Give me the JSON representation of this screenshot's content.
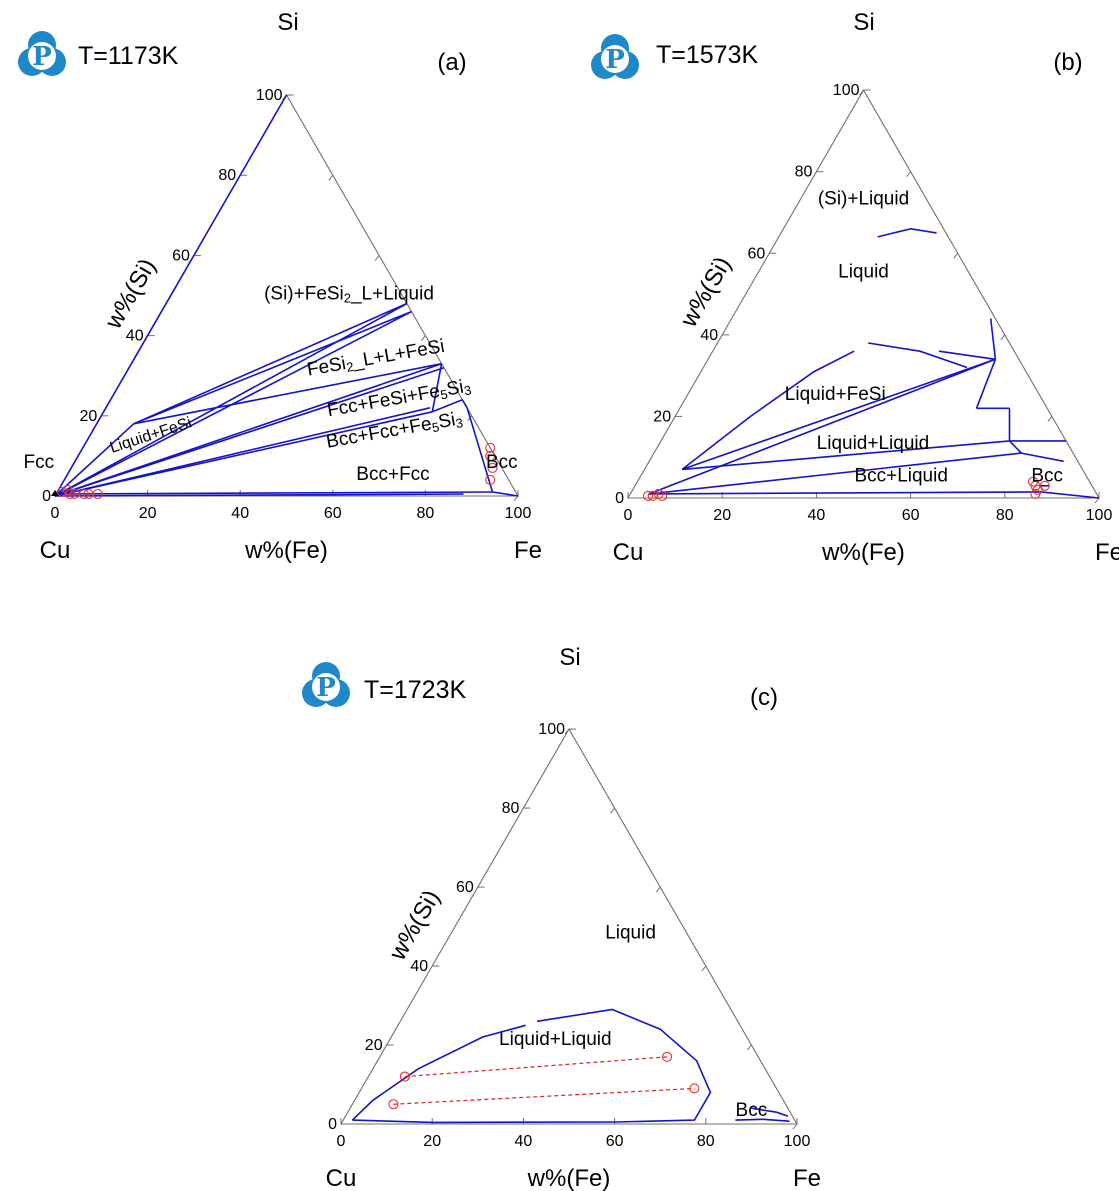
{
  "chart_data": [
    {
      "type": "ternary",
      "panel_label": "(a)",
      "temperature": "T=1173K",
      "apex_labels": {
        "top": "Si",
        "left": "Cu",
        "right": "Fe"
      },
      "axis_labels": {
        "left": "w%(Si)",
        "bottom": "w%(Fe)"
      },
      "ticks": {
        "bottom": [
          "0",
          "20",
          "40",
          "60",
          "80",
          "100"
        ],
        "left": [
          "0",
          "20",
          "40",
          "60",
          "80",
          "100"
        ]
      },
      "region_labels": [
        {
          "text": "(Si)+FeSi₂_L+Liquid",
          "fe": 39,
          "si": 49
        },
        {
          "text": "FeSi₂_L+L+FeSi",
          "fe": 53,
          "si": 33
        },
        {
          "text": "Fcc+FeSi+Fe₅Si₃",
          "fe": 63,
          "si": 23
        },
        {
          "text": "Bcc+Fcc+Fe₅Si₃",
          "fe": 66,
          "si": 15
        },
        {
          "text": "Bcc+Fcc",
          "fe": 71,
          "si": 4
        },
        {
          "text": "Liquid+FeSi",
          "fe": 14,
          "si": 14
        },
        {
          "text": "Fcc",
          "fe": -7,
          "si": 7
        },
        {
          "text": "Bcc",
          "fe": 93,
          "si": 7
        }
      ],
      "phase_lines": [
        [
          [
            0,
            0
          ],
          [
            0,
            100
          ]
        ],
        [
          [
            0,
            0
          ],
          [
            52,
            48
          ]
        ],
        [
          [
            0,
            0
          ],
          [
            54,
            46
          ]
        ],
        [
          [
            0,
            0
          ],
          [
            8,
            18
          ]
        ],
        [
          [
            8,
            18
          ],
          [
            52,
            48
          ]
        ],
        [
          [
            8,
            18
          ],
          [
            54,
            46
          ]
        ],
        [
          [
            0,
            0
          ],
          [
            67,
            33
          ]
        ],
        [
          [
            0,
            0
          ],
          [
            68,
            32
          ]
        ],
        [
          [
            0,
            0
          ],
          [
            70,
            22
          ]
        ],
        [
          [
            0,
            0
          ],
          [
            71,
            21
          ]
        ],
        [
          [
            0,
            0
          ],
          [
            88,
            0.5
          ]
        ],
        [
          [
            8,
            18
          ],
          [
            67,
            33
          ]
        ],
        [
          [
            67,
            33
          ],
          [
            71,
            21
          ]
        ],
        [
          [
            71,
            21
          ],
          [
            76,
            24
          ]
        ],
        [
          [
            76,
            24
          ],
          [
            78,
            22
          ]
        ],
        [
          [
            78,
            22
          ],
          [
            94,
            1
          ]
        ],
        [
          [
            0,
            0.5
          ],
          [
            94,
            1
          ]
        ],
        [
          [
            94,
            1
          ],
          [
            100,
            0
          ]
        ]
      ],
      "experimental_points": [
        [
          88,
          12
        ],
        [
          89,
          10
        ],
        [
          91,
          7
        ],
        [
          92,
          4
        ],
        [
          1,
          1
        ],
        [
          2,
          1.5
        ],
        [
          3,
          0.5
        ],
        [
          4,
          0.5
        ],
        [
          6,
          0.5
        ],
        [
          7,
          0.5
        ],
        [
          9,
          0.5
        ]
      ]
    },
    {
      "type": "ternary",
      "panel_label": "(b)",
      "temperature": "T=1573K",
      "apex_labels": {
        "top": "Si",
        "left": "Cu",
        "right": "Fe"
      },
      "axis_labels": {
        "left": "w%(Si)",
        "bottom": "w%(Fe)"
      },
      "ticks": {
        "bottom": [
          "0",
          "20",
          "40",
          "60",
          "80",
          "100"
        ],
        "left": [
          "0",
          "20",
          "40",
          "60",
          "80",
          "100"
        ]
      },
      "region_labels": [
        {
          "text": "(Si)+Liquid",
          "fe": 14,
          "si": 72
        },
        {
          "text": "Liquid",
          "fe": 23,
          "si": 54
        },
        {
          "text": "Liquid+FeSi",
          "fe": 32,
          "si": 24
        },
        {
          "text": "Liquid+Liquid",
          "fe": 46,
          "si": 12
        },
        {
          "text": "Bcc+Liquid",
          "fe": 56,
          "si": 4
        },
        {
          "text": "Bcc",
          "fe": 87,
          "si": 4
        }
      ],
      "phase_lines": [
        [
          [
            21,
            64
          ],
          [
            27,
            66
          ],
          [
            33,
            65
          ]
        ],
        [
          [
            8,
            7
          ],
          [
            16,
            20
          ],
          [
            24,
            31
          ],
          [
            30,
            36
          ]
        ],
        [
          [
            32,
            38
          ],
          [
            44,
            36
          ],
          [
            56,
            32
          ]
        ],
        [
          [
            8,
            7
          ],
          [
            61,
            34
          ]
        ],
        [
          [
            4,
            1
          ],
          [
            61,
            34
          ]
        ],
        [
          [
            48,
            36
          ],
          [
            61,
            34
          ]
        ],
        [
          [
            55,
            44
          ],
          [
            61,
            34
          ]
        ],
        [
          [
            61,
            34
          ],
          [
            63,
            22
          ]
        ],
        [
          [
            63,
            22
          ],
          [
            70,
            22
          ]
        ],
        [
          [
            70,
            22
          ],
          [
            74,
            14
          ]
        ],
        [
          [
            74,
            14
          ],
          [
            86,
            14
          ]
        ],
        [
          [
            74,
            14
          ],
          [
            78,
            11
          ]
        ],
        [
          [
            78,
            11
          ],
          [
            88,
            9
          ]
        ],
        [
          [
            8,
            7
          ],
          [
            74,
            14
          ]
        ],
        [
          [
            4,
            1
          ],
          [
            78,
            11
          ]
        ],
        [
          [
            4,
            1
          ],
          [
            87,
            1.5
          ]
        ],
        [
          [
            87,
            1.5
          ],
          [
            100,
            0
          ]
        ],
        [
          [
            86,
            3
          ],
          [
            88,
            3
          ]
        ]
      ],
      "experimental_points": [
        [
          84,
          4
        ],
        [
          85,
          3
        ],
        [
          86,
          2
        ],
        [
          87,
          3
        ],
        [
          86,
          1
        ],
        [
          4,
          0.5
        ],
        [
          5,
          0.5
        ],
        [
          6,
          1
        ],
        [
          7,
          0.5
        ]
      ]
    },
    {
      "type": "ternary",
      "panel_label": "(c)",
      "temperature": "T=1723K",
      "apex_labels": {
        "top": "Si",
        "left": "Cu",
        "right": "Fe"
      },
      "axis_labels": {
        "left": "w%(Si)",
        "bottom": "w%(Fe)"
      },
      "ticks": {
        "bottom": [
          "0",
          "20",
          "40",
          "60",
          "80",
          "100"
        ],
        "left": [
          "0",
          "20",
          "40",
          "60",
          "80",
          "100"
        ]
      },
      "region_labels": [
        {
          "text": "Liquid",
          "fe": 40,
          "si": 47
        },
        {
          "text": "Liquid+Liquid",
          "fe": 37,
          "si": 20
        },
        {
          "text": "Bcc",
          "fe": 89,
          "si": 2
        }
      ],
      "phase_lines": [
        [
          [
            2,
            1
          ],
          [
            4,
            6
          ],
          [
            10,
            14
          ],
          [
            20,
            22
          ],
          [
            28,
            25
          ]
        ],
        [
          [
            30,
            26
          ],
          [
            45,
            29
          ],
          [
            58,
            24
          ],
          [
            70,
            16
          ],
          [
            77,
            8
          ],
          [
            77,
            1
          ],
          [
            60,
            0.5
          ],
          [
            20,
            0.4
          ],
          [
            2,
            1
          ]
        ],
        [
          [
            88,
            4
          ],
          [
            94,
            3
          ],
          [
            97,
            2
          ]
        ],
        [
          [
            86,
            1
          ],
          [
            92,
            1.2
          ],
          [
            98,
            0.7
          ]
        ]
      ],
      "tie_lines": [
        [
          [
            9,
            5
          ],
          [
            73,
            9
          ]
        ],
        [
          [
            8,
            12
          ],
          [
            63,
            17
          ]
        ]
      ],
      "experimental_points": [
        [
          9,
          5
        ],
        [
          73,
          9
        ],
        [
          8,
          12
        ],
        [
          63,
          17
        ]
      ]
    }
  ]
}
